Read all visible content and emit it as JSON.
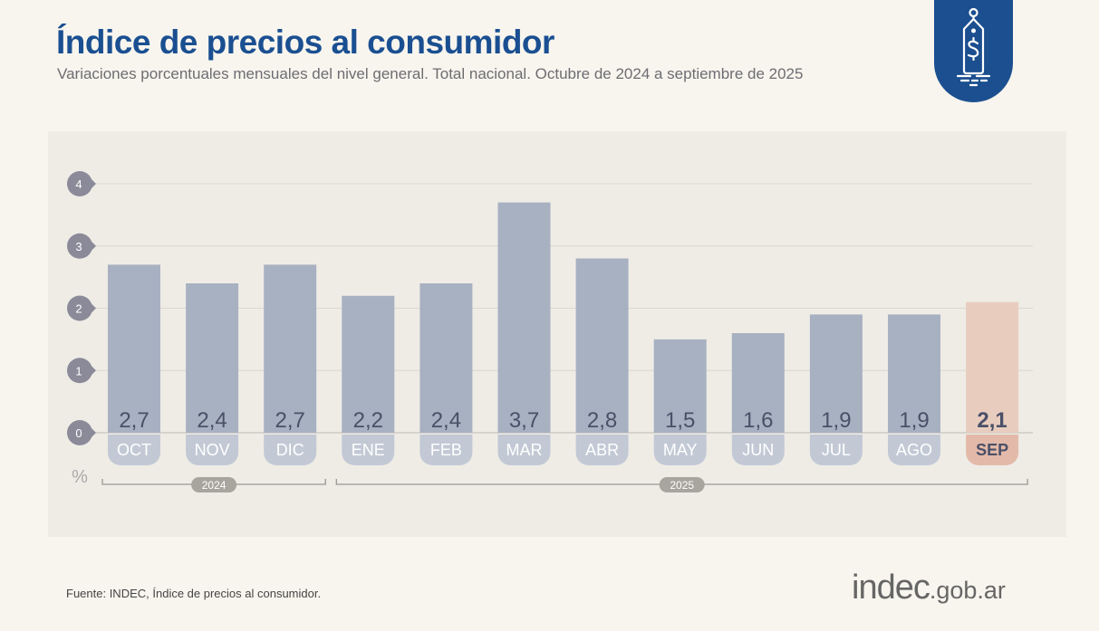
{
  "header": {
    "title": "Índice de precios al consumidor",
    "subtitle": "Variaciones porcentuales mensuales del nivel general. Total nacional. Octubre de 2024 a septiembre de 2025"
  },
  "logo": {
    "icon": "price-tag-dollar-icon",
    "color": "#1b4f8f"
  },
  "footer": {
    "source": "Fuente: INDEC, Índice de precios al consumidor.",
    "brand_main": "indec",
    "brand_suffix": ".gob.ar"
  },
  "chart_data": {
    "type": "bar",
    "categories": [
      "OCT",
      "NOV",
      "DIC",
      "ENE",
      "FEB",
      "MAR",
      "ABR",
      "MAY",
      "JUN",
      "JUL",
      "AGO",
      "SEP"
    ],
    "values": [
      2.7,
      2.4,
      2.7,
      2.2,
      2.4,
      3.7,
      2.8,
      1.5,
      1.6,
      1.9,
      1.9,
      2.1
    ],
    "value_labels": [
      "2,7",
      "2,4",
      "2,7",
      "2,2",
      "2,4",
      "3,7",
      "2,8",
      "1,5",
      "1,6",
      "1,9",
      "1,9",
      "2,1"
    ],
    "highlight_index": 11,
    "ylabel": "%",
    "ylim": [
      0,
      4
    ],
    "yticks": [
      "0",
      "1",
      "2",
      "3",
      "4"
    ],
    "grid": true,
    "year_groups": [
      {
        "label": "2024",
        "from": "OCT",
        "to": "DIC"
      },
      {
        "label": "2025",
        "from": "ENE",
        "to": "SEP"
      }
    ],
    "colors": {
      "bar": "#a7b1c1",
      "label_pill": "#c2c9d5",
      "highlight_bar": "#e8cdbf",
      "highlight_pill": "#e3baa9",
      "value_text": "#4a5068",
      "tick_badge": "#8a8a99"
    }
  }
}
